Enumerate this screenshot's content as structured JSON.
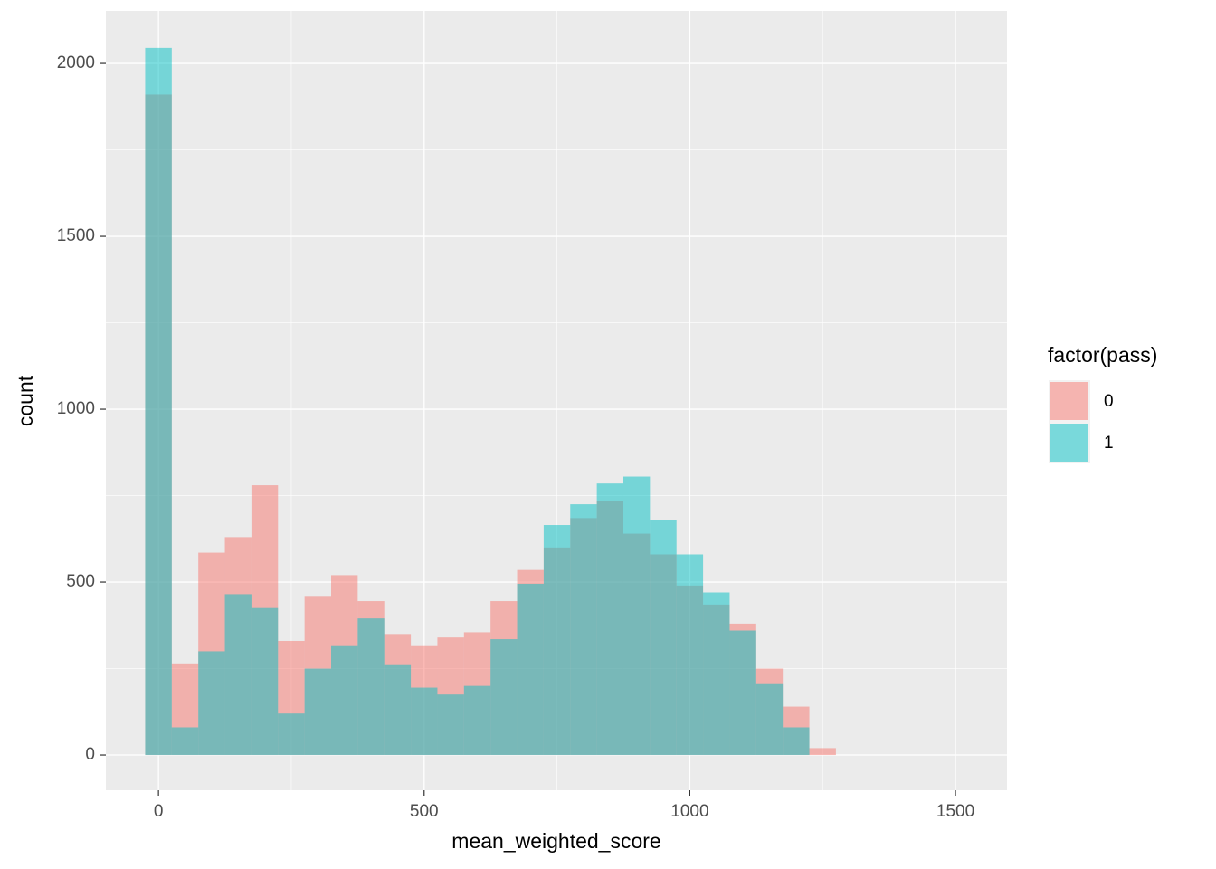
{
  "chart_data": {
    "type": "histogram",
    "x_label": "mean_weighted_score",
    "y_label": "count",
    "legend_title": "factor(pass)",
    "legend_position": "right",
    "bins": [
      -25,
      25,
      75,
      125,
      175,
      225,
      275,
      325,
      375,
      425,
      475,
      525,
      575,
      625,
      675,
      725,
      775,
      825,
      875,
      925,
      975,
      1025,
      1075,
      1125,
      1175,
      1225,
      1275
    ],
    "series": [
      {
        "name": "0",
        "color": "#F8766D",
        "values": [
          1910,
          265,
          585,
          630,
          780,
          330,
          460,
          520,
          445,
          350,
          315,
          340,
          355,
          445,
          535,
          600,
          685,
          735,
          640,
          580,
          490,
          435,
          380,
          250,
          140,
          20
        ]
      },
      {
        "name": "1",
        "color": "#00BFC4",
        "values": [
          2045,
          80,
          300,
          465,
          425,
          120,
          250,
          315,
          395,
          260,
          195,
          175,
          200,
          335,
          495,
          665,
          725,
          785,
          805,
          680,
          580,
          470,
          360,
          205,
          80,
          0
        ]
      }
    ],
    "xlim": [
      -99,
      1597
    ],
    "ylim": [
      -102,
      2152
    ],
    "xticks": [
      0,
      500,
      1000,
      1500
    ],
    "yticks": [
      0,
      500,
      1000,
      1500,
      2000
    ],
    "grid": true
  }
}
